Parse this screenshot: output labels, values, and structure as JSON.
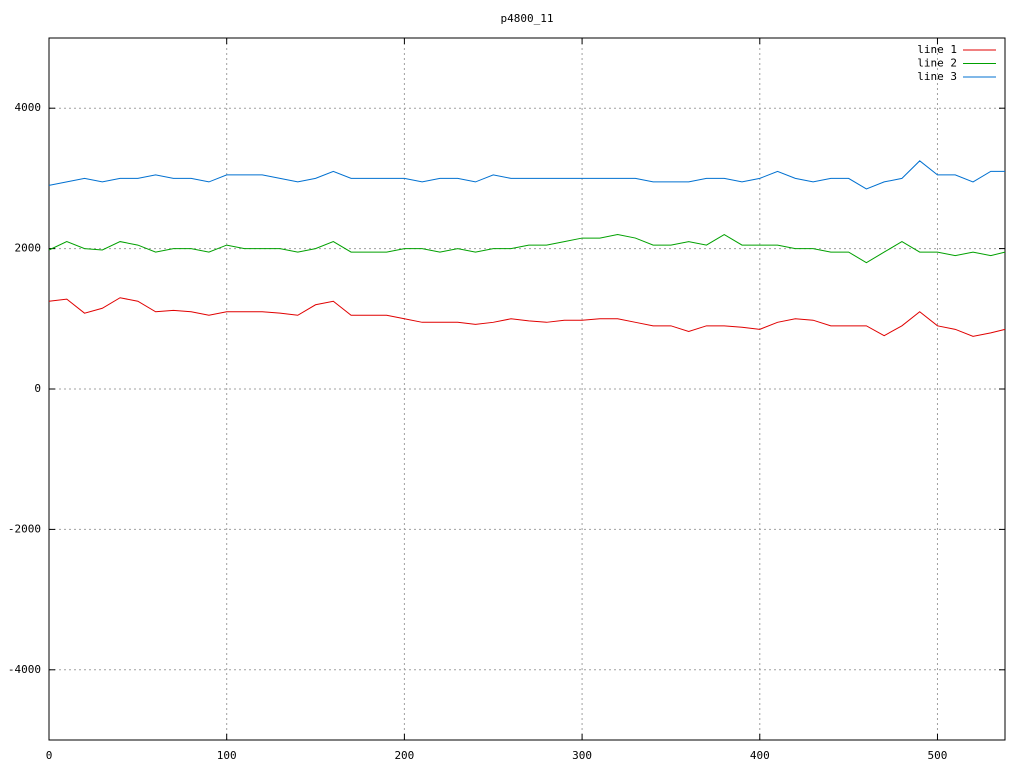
{
  "chart_data": {
    "type": "line",
    "title": "p4800_11",
    "x": [
      0,
      10,
      20,
      30,
      40,
      50,
      60,
      70,
      80,
      90,
      100,
      110,
      120,
      130,
      140,
      150,
      160,
      170,
      180,
      190,
      200,
      210,
      220,
      230,
      240,
      250,
      260,
      270,
      280,
      290,
      300,
      310,
      320,
      330,
      340,
      350,
      360,
      370,
      380,
      390,
      400,
      410,
      420,
      430,
      440,
      450,
      460,
      470,
      480,
      490,
      500,
      510,
      520,
      530,
      538
    ],
    "series": [
      {
        "name": "line 1",
        "color": "#e00000",
        "values": [
          1250,
          1280,
          1080,
          1150,
          1300,
          1250,
          1100,
          1120,
          1100,
          1050,
          1100,
          1100,
          1100,
          1080,
          1050,
          1200,
          1250,
          1050,
          1050,
          1050,
          1000,
          950,
          950,
          950,
          920,
          950,
          1000,
          970,
          950,
          980,
          980,
          1000,
          1000,
          950,
          900,
          900,
          820,
          900,
          900,
          880,
          850,
          950,
          1000,
          980,
          900,
          900,
          900,
          760,
          900,
          1100,
          900,
          850,
          750,
          800,
          850
        ]
      },
      {
        "name": "line 2",
        "color": "#00a000",
        "values": [
          1980,
          2100,
          2000,
          1980,
          2100,
          2050,
          1950,
          2000,
          2000,
          1950,
          2050,
          2000,
          2000,
          2000,
          1950,
          2000,
          2100,
          1950,
          1950,
          1950,
          2000,
          2000,
          1950,
          2000,
          1950,
          2000,
          2000,
          2050,
          2050,
          2100,
          2150,
          2150,
          2200,
          2150,
          2050,
          2050,
          2100,
          2050,
          2200,
          2050,
          2050,
          2050,
          2000,
          2000,
          1950,
          1950,
          1800,
          1950,
          2100,
          1950,
          1950,
          1900,
          1950,
          1900,
          1950
        ]
      },
      {
        "name": "line 3",
        "color": "#0070d0",
        "values": [
          2900,
          2950,
          3000,
          2950,
          3000,
          3000,
          3050,
          3000,
          3000,
          2950,
          3050,
          3050,
          3050,
          3000,
          2950,
          3000,
          3100,
          3000,
          3000,
          3000,
          3000,
          2950,
          3000,
          3000,
          2950,
          3050,
          3000,
          3000,
          3000,
          3000,
          3000,
          3000,
          3000,
          3000,
          2950,
          2950,
          2950,
          3000,
          3000,
          2950,
          3000,
          3100,
          3000,
          2950,
          3000,
          3000,
          2850,
          2950,
          3000,
          3250,
          3050,
          3050,
          2950,
          3100,
          3100
        ]
      }
    ],
    "xlim": [
      0,
      538
    ],
    "ylim": [
      -5000,
      5000
    ],
    "xticks": [
      0,
      100,
      200,
      300,
      400,
      500
    ],
    "yticks": [
      -4000,
      -2000,
      0,
      2000,
      4000
    ],
    "grid": true,
    "legend": "top-right"
  }
}
